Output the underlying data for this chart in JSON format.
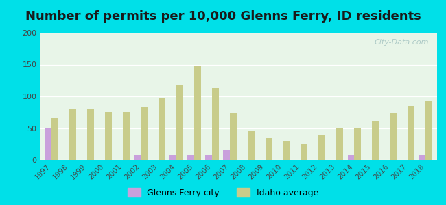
{
  "title": "Number of permits per 10,000 Glenns Ferry, ID residents",
  "years": [
    1997,
    1998,
    1999,
    2000,
    2001,
    2002,
    2003,
    2004,
    2005,
    2006,
    2007,
    2008,
    2009,
    2010,
    2011,
    2012,
    2013,
    2014,
    2015,
    2016,
    2017,
    2018
  ],
  "city_values": [
    50,
    0,
    0,
    0,
    0,
    8,
    0,
    8,
    8,
    8,
    15,
    0,
    0,
    0,
    0,
    0,
    0,
    8,
    0,
    0,
    0,
    8
  ],
  "idaho_values": [
    67,
    80,
    81,
    75,
    75,
    84,
    98,
    118,
    148,
    113,
    73,
    46,
    34,
    29,
    25,
    40,
    50,
    50,
    61,
    74,
    85,
    93
  ],
  "ylim": [
    0,
    200
  ],
  "yticks": [
    0,
    50,
    100,
    150,
    200
  ],
  "city_color": "#c9a0dc",
  "idaho_color": "#c8cc8a",
  "plot_bg": "#e8f5e8",
  "outer_bg": "#00e0e8",
  "title_fontsize": 13,
  "legend_city": "Glenns Ferry city",
  "legend_idaho": "Idaho average",
  "bar_width": 0.38
}
